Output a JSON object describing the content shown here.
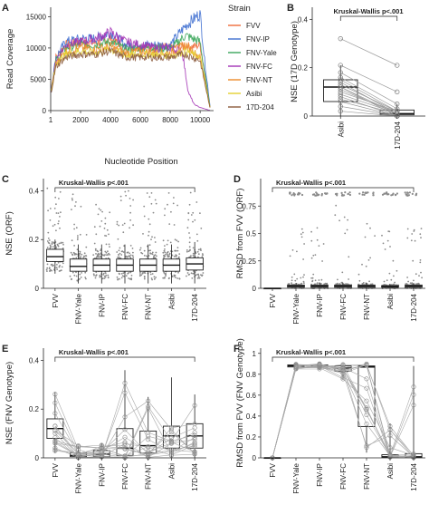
{
  "chart_data": [
    {
      "id": "A",
      "type": "line",
      "panel_label": "A",
      "xlabel": "Nucleotide Position",
      "ylabel": "Read Coverage",
      "xlim": [
        1,
        10900
      ],
      "ylim": [
        0,
        16500
      ],
      "x_ticks": [
        1,
        2000,
        4000,
        6000,
        8000,
        10000
      ],
      "x_tick_labels": [
        "1",
        "2000",
        "4000",
        "6000",
        "8000",
        "10000"
      ],
      "y_ticks": [
        0,
        5000,
        10000,
        15000
      ],
      "y_tick_labels": [
        "0",
        "5000",
        "10000",
        "15000"
      ],
      "legend_title": "Strain",
      "legend_position": "right",
      "series": [
        {
          "name": "FVV",
          "color": "#ef6b3a",
          "profile": [
            [
              1,
              3000
            ],
            [
              350,
              8500
            ],
            [
              1000,
              10500
            ],
            [
              2000,
              11000
            ],
            [
              3000,
              10800
            ],
            [
              4000,
              11500
            ],
            [
              5000,
              10000
            ],
            [
              6000,
              10200
            ],
            [
              7000,
              10200
            ],
            [
              8000,
              10000
            ],
            [
              9000,
              10300
            ],
            [
              9500,
              10200
            ],
            [
              10000,
              10500
            ],
            [
              10300,
              6000
            ],
            [
              10700,
              0
            ]
          ]
        },
        {
          "name": "FNV-IP",
          "color": "#3f6fd0",
          "profile": [
            [
              1,
              3000
            ],
            [
              350,
              8500
            ],
            [
              1000,
              11000
            ],
            [
              2000,
              11500
            ],
            [
              3000,
              11500
            ],
            [
              4000,
              12500
            ],
            [
              5000,
              10500
            ],
            [
              6000,
              10500
            ],
            [
              7000,
              10500
            ],
            [
              8000,
              10500
            ],
            [
              9000,
              13500
            ],
            [
              9500,
              14500
            ],
            [
              10000,
              15500
            ],
            [
              10300,
              8000
            ],
            [
              10700,
              0
            ]
          ]
        },
        {
          "name": "FNV-Yale",
          "color": "#3aa65a",
          "profile": [
            [
              1,
              2500
            ],
            [
              350,
              8000
            ],
            [
              1000,
              10000
            ],
            [
              2000,
              10500
            ],
            [
              3000,
              10500
            ],
            [
              4000,
              11000
            ],
            [
              5000,
              9800
            ],
            [
              6000,
              10000
            ],
            [
              7000,
              10000
            ],
            [
              8000,
              9800
            ],
            [
              9000,
              12000
            ],
            [
              9500,
              11500
            ],
            [
              10000,
              11000
            ],
            [
              10300,
              6000
            ],
            [
              10700,
              0
            ]
          ]
        },
        {
          "name": "FNV-FC",
          "color": "#a333b5",
          "profile": [
            [
              1,
              2500
            ],
            [
              350,
              8000
            ],
            [
              1000,
              10500
            ],
            [
              2000,
              11000
            ],
            [
              3000,
              11500
            ],
            [
              4000,
              12500
            ],
            [
              5000,
              11000
            ],
            [
              6000,
              10500
            ],
            [
              7000,
              10000
            ],
            [
              8000,
              10000
            ],
            [
              8800,
              9500
            ],
            [
              9200,
              3000
            ],
            [
              9600,
              1000
            ],
            [
              10000,
              500
            ],
            [
              10700,
              0
            ]
          ]
        },
        {
          "name": "FNV-NT",
          "color": "#ec8c2a",
          "profile": [
            [
              1,
              2500
            ],
            [
              350,
              7500
            ],
            [
              1000,
              9500
            ],
            [
              2000,
              10000
            ],
            [
              3000,
              9800
            ],
            [
              4000,
              10200
            ],
            [
              5000,
              9200
            ],
            [
              6000,
              9500
            ],
            [
              7000,
              9300
            ],
            [
              8000,
              9200
            ],
            [
              9000,
              10500
            ],
            [
              9500,
              9500
            ],
            [
              10000,
              8500
            ],
            [
              10300,
              5000
            ],
            [
              10700,
              0
            ]
          ]
        },
        {
          "name": "Asibi",
          "color": "#e3cf2f",
          "profile": [
            [
              1,
              2500
            ],
            [
              350,
              7500
            ],
            [
              1000,
              9000
            ],
            [
              2000,
              9500
            ],
            [
              3000,
              9200
            ],
            [
              4000,
              9800
            ],
            [
              5000,
              8800
            ],
            [
              6000,
              9000
            ],
            [
              7000,
              9000
            ],
            [
              8000,
              8800
            ],
            [
              9000,
              9500
            ],
            [
              9500,
              9000
            ],
            [
              10000,
              8500
            ],
            [
              10300,
              5000
            ],
            [
              10700,
              0
            ]
          ]
        },
        {
          "name": "17D-204",
          "color": "#8b5a3c",
          "profile": [
            [
              1,
              2500
            ],
            [
              350,
              7000
            ],
            [
              1000,
              8500
            ],
            [
              2000,
              9000
            ],
            [
              3000,
              9000
            ],
            [
              4000,
              9500
            ],
            [
              5000,
              8500
            ],
            [
              6000,
              8500
            ],
            [
              7000,
              8500
            ],
            [
              8000,
              8500
            ],
            [
              9000,
              9000
            ],
            [
              9500,
              8500
            ],
            [
              10000,
              8000
            ],
            [
              10300,
              4500
            ],
            [
              10700,
              0
            ]
          ]
        }
      ]
    },
    {
      "id": "B",
      "type": "box",
      "panel_label": "B",
      "ylabel": "NSE (17D Genotype)",
      "categories": [
        "Asibi",
        "17D-204"
      ],
      "ylim": [
        0,
        0.45
      ],
      "y_ticks": [
        0,
        0.2,
        0.4
      ],
      "y_tick_labels": [
        "0",
        "0.2",
        "0.4"
      ],
      "annotation": "Kruskal-Wallis p<.001",
      "boxes": [
        {
          "q1": 0.06,
          "median": 0.12,
          "q3": 0.15,
          "whisker_low": 0.0,
          "whisker_high": 0.21
        },
        {
          "q1": 0.005,
          "median": 0.01,
          "q3": 0.025,
          "whisker_low": 0.0,
          "whisker_high": 0.05
        }
      ],
      "paired_points": [
        [
          0.32,
          0.21
        ],
        [
          0.21,
          0.1
        ],
        [
          0.18,
          0.05
        ],
        [
          0.16,
          0.03
        ],
        [
          0.15,
          0.02
        ],
        [
          0.14,
          0.01
        ],
        [
          0.13,
          0.02
        ],
        [
          0.12,
          0.01
        ],
        [
          0.12,
          0.0
        ],
        [
          0.11,
          0.01
        ],
        [
          0.1,
          0.02
        ],
        [
          0.09,
          0.01
        ],
        [
          0.08,
          0.0
        ],
        [
          0.07,
          0.01
        ],
        [
          0.06,
          0.0
        ],
        [
          0.04,
          0.0
        ],
        [
          0.02,
          0.0
        ]
      ]
    },
    {
      "id": "C",
      "type": "box",
      "panel_label": "C",
      "ylabel": "NSE (ORF)",
      "categories": [
        "FVV",
        "FNV-Yale",
        "FNV-IP",
        "FNV-FC",
        "FNV-NT",
        "Asibi",
        "17D-204"
      ],
      "ylim": [
        0,
        0.45
      ],
      "y_ticks": [
        0,
        0.2,
        0.4
      ],
      "y_tick_labels": [
        "0",
        "0.2",
        "0.4"
      ],
      "annotation": "Kruskal-Wallis p<.001",
      "boxes": [
        {
          "q1": 0.11,
          "median": 0.13,
          "q3": 0.16,
          "whisker_low": 0.06,
          "whisker_high": 0.2,
          "jitter_max": 0.42
        },
        {
          "q1": 0.07,
          "median": 0.09,
          "q3": 0.12,
          "whisker_low": 0.02,
          "whisker_high": 0.18,
          "jitter_max": 0.4
        },
        {
          "q1": 0.07,
          "median": 0.095,
          "q3": 0.12,
          "whisker_low": 0.02,
          "whisker_high": 0.18,
          "jitter_max": 0.38
        },
        {
          "q1": 0.07,
          "median": 0.095,
          "q3": 0.12,
          "whisker_low": 0.02,
          "whisker_high": 0.18,
          "jitter_max": 0.4
        },
        {
          "q1": 0.07,
          "median": 0.095,
          "q3": 0.12,
          "whisker_low": 0.02,
          "whisker_high": 0.18,
          "jitter_max": 0.41
        },
        {
          "q1": 0.07,
          "median": 0.095,
          "q3": 0.12,
          "whisker_low": 0.02,
          "whisker_high": 0.18,
          "jitter_max": 0.4
        },
        {
          "q1": 0.075,
          "median": 0.1,
          "q3": 0.125,
          "whisker_low": 0.02,
          "whisker_high": 0.19,
          "jitter_max": 0.42
        }
      ]
    },
    {
      "id": "D",
      "type": "box",
      "panel_label": "D",
      "ylabel": "RMSD from FVV (ORF)",
      "categories": [
        "FVV",
        "FNV-Yale",
        "FNV-IP",
        "FNV-FC",
        "FNV-NT",
        "Asibi",
        "17D-204"
      ],
      "ylim": [
        0,
        1.0
      ],
      "y_ticks": [
        0,
        0.25,
        0.5,
        0.75
      ],
      "y_tick_labels": [
        "0",
        "0.25",
        "0.5",
        "0.75"
      ],
      "annotation": "Kruskal-Wallis p<.001",
      "boxes": [
        {
          "q1": 0.0,
          "median": 0.0,
          "q3": 0.0,
          "whisker_low": 0.0,
          "whisker_high": 0.0,
          "jitter_max": 0.0,
          "top_cluster": false
        },
        {
          "q1": 0.01,
          "median": 0.02,
          "q3": 0.03,
          "whisker_low": 0.0,
          "whisker_high": 0.05,
          "jitter_max": 0.6,
          "top_cluster": true
        },
        {
          "q1": 0.01,
          "median": 0.02,
          "q3": 0.03,
          "whisker_low": 0.0,
          "whisker_high": 0.05,
          "jitter_max": 0.6,
          "top_cluster": true
        },
        {
          "q1": 0.01,
          "median": 0.02,
          "q3": 0.03,
          "whisker_low": 0.0,
          "whisker_high": 0.05,
          "jitter_max": 0.85,
          "top_cluster": true
        },
        {
          "q1": 0.01,
          "median": 0.02,
          "q3": 0.03,
          "whisker_low": 0.0,
          "whisker_high": 0.05,
          "jitter_max": 0.6,
          "top_cluster": true
        },
        {
          "q1": 0.01,
          "median": 0.015,
          "q3": 0.025,
          "whisker_low": 0.0,
          "whisker_high": 0.04,
          "jitter_max": 0.55,
          "top_cluster": true
        },
        {
          "q1": 0.01,
          "median": 0.02,
          "q3": 0.03,
          "whisker_low": 0.0,
          "whisker_high": 0.05,
          "jitter_max": 0.6,
          "top_cluster": true
        }
      ]
    },
    {
      "id": "E",
      "type": "box",
      "panel_label": "E",
      "ylabel": "NSE (FNV Genotype)",
      "categories": [
        "FVV",
        "FNV-Yale",
        "FNV-IP",
        "FNV-FC",
        "FNV-NT",
        "Asibi",
        "17D-204"
      ],
      "ylim": [
        0,
        0.45
      ],
      "y_ticks": [
        0,
        0.2,
        0.4
      ],
      "y_tick_labels": [
        "0",
        "0.2",
        "0.4"
      ],
      "annotation": "Kruskal-Wallis p<.001",
      "boxes": [
        {
          "q1": 0.08,
          "median": 0.12,
          "q3": 0.16,
          "whisker_low": 0.02,
          "whisker_high": 0.27
        },
        {
          "q1": 0.005,
          "median": 0.01,
          "q3": 0.02,
          "whisker_low": 0.0,
          "whisker_high": 0.05
        },
        {
          "q1": 0.005,
          "median": 0.015,
          "q3": 0.03,
          "whisker_low": 0.0,
          "whisker_high": 0.06
        },
        {
          "q1": 0.01,
          "median": 0.04,
          "q3": 0.12,
          "whisker_low": 0.0,
          "whisker_high": 0.36
        },
        {
          "q1": 0.02,
          "median": 0.05,
          "q3": 0.11,
          "whisker_low": 0.0,
          "whisker_high": 0.25
        },
        {
          "q1": 0.04,
          "median": 0.09,
          "q3": 0.13,
          "whisker_low": 0.0,
          "whisker_high": 0.33
        },
        {
          "q1": 0.04,
          "median": 0.09,
          "q3": 0.14,
          "whisker_low": 0.0,
          "whisker_high": 0.26
        }
      ]
    },
    {
      "id": "F",
      "type": "box",
      "panel_label": "F",
      "ylabel": "RMSD from FVV (FNV Genotype)",
      "categories": [
        "FVV",
        "FNV-Yale",
        "FNV-IP",
        "FNV-FC",
        "FNV-NT",
        "Asibi",
        "17D-204"
      ],
      "ylim": [
        0,
        1.05
      ],
      "y_ticks": [
        0,
        0.2,
        0.4,
        0.6,
        0.8,
        1
      ],
      "y_tick_labels": [
        "0",
        "0.2",
        "0.4",
        "0.6",
        "0.8",
        "1"
      ],
      "annotation": "Kruskal-Wallis p<.001",
      "boxes": [
        {
          "q1": 0.0,
          "median": 0.0,
          "q3": 0.0,
          "whisker_low": 0.0,
          "whisker_high": 0.0
        },
        {
          "q1": 0.87,
          "median": 0.88,
          "q3": 0.89,
          "whisker_low": 0.85,
          "whisker_high": 0.9
        },
        {
          "q1": 0.87,
          "median": 0.88,
          "q3": 0.89,
          "whisker_low": 0.85,
          "whisker_high": 0.9
        },
        {
          "q1": 0.83,
          "median": 0.86,
          "q3": 0.88,
          "whisker_low": 0.75,
          "whisker_high": 0.9
        },
        {
          "q1": 0.3,
          "median": 0.87,
          "q3": 0.88,
          "whisker_low": 0.05,
          "whisker_high": 0.9
        },
        {
          "q1": 0.005,
          "median": 0.01,
          "q3": 0.03,
          "whisker_low": 0.0,
          "whisker_high": 0.33
        },
        {
          "q1": 0.005,
          "median": 0.01,
          "q3": 0.04,
          "whisker_low": 0.0,
          "whisker_high": 0.88
        }
      ]
    }
  ]
}
